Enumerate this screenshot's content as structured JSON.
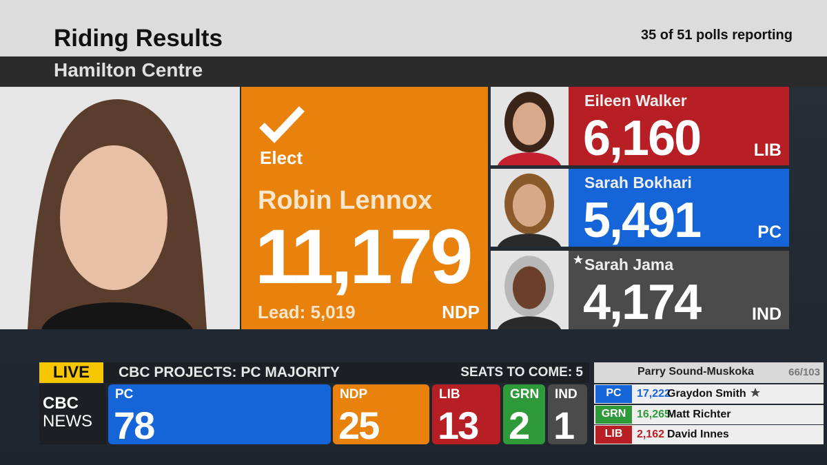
{
  "header": {
    "title": "Riding Results",
    "polls": "35 of 51 polls reporting",
    "riding": "Hamilton Centre"
  },
  "winner": {
    "status": "Elect",
    "name": "Robin Lennox",
    "votes": "11,179",
    "lead": "Lead: 5,019",
    "party": "NDP"
  },
  "candidates": [
    {
      "name": "Eileen Walker",
      "votes": "6,160",
      "party": "LIB"
    },
    {
      "name": "Sarah Bokhari",
      "votes": "5,491",
      "party": "PC"
    },
    {
      "name": "Sarah Jama",
      "votes": "4,174",
      "party": "IND"
    }
  ],
  "ticker": {
    "live": "LIVE",
    "headline": "CBC PROJECTS: PC MAJORITY",
    "seats_to_come": "SEATS TO COME: 5",
    "logo_top": "CBC",
    "logo_bottom": "NEWS"
  },
  "seats": [
    {
      "party": "PC",
      "seats": 78
    },
    {
      "party": "NDP",
      "seats": 25
    },
    {
      "party": "LIB",
      "seats": 13
    },
    {
      "party": "GRN",
      "seats": 2
    },
    {
      "party": "IND",
      "seats": 1
    }
  ],
  "other_riding": {
    "name": "Parry Sound-Muskoka",
    "polls": "66/103",
    "rows": [
      {
        "party": "PC",
        "votes": "17,222",
        "name": "Graydon Smith"
      },
      {
        "party": "GRN",
        "votes": "16,265",
        "name": "Matt Richter"
      },
      {
        "party": "LIB",
        "votes": "2,162",
        "name": "David Innes"
      }
    ]
  }
}
